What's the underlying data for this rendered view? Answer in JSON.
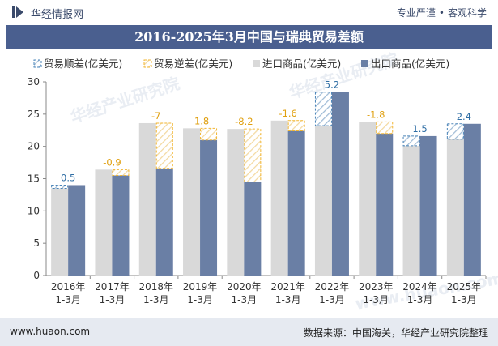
{
  "header": {
    "brand": "华经情报网",
    "tag1": "专业严谨",
    "tag2": "客观科学",
    "title": "2016-2025年3月中国与瑞典贸易差额"
  },
  "footer": {
    "site": "www.huaon.com",
    "source": "数据来源：中国海关，华经产业研究院整理"
  },
  "watermarks": [
    "华经产业研究院",
    "华经产业研究院",
    "www.huaon.com"
  ],
  "colors": {
    "import": "#d9d9d9",
    "export": "#6a7fa5",
    "surplus": "#4a84b8",
    "deficit": "#f2b632",
    "surplus_label": "#2e6da4",
    "deficit_label": "#e0a010"
  },
  "chart_data": {
    "type": "bar",
    "title": "2016-2025年3月中国与瑞典贸易差额",
    "categories": [
      "2016年\n1-3月",
      "2017年\n1-3月",
      "2018年\n1-3月",
      "2019年\n1-3月",
      "2020年\n1-3月",
      "2021年\n1-3月",
      "2022年\n1-3月",
      "2023年\n1-3月",
      "2024年\n1-3月",
      "2025年\n1-3月"
    ],
    "legend": [
      "贸易顺差(亿美元)",
      "贸易逆差(亿美元)",
      "进口商品(亿美元)",
      "出口商品(亿美元)"
    ],
    "series": [
      {
        "name": "进口商品(亿美元)",
        "values": [
          13.5,
          16.4,
          23.6,
          22.8,
          22.7,
          24.0,
          23.2,
          23.8,
          20.1,
          21.1
        ]
      },
      {
        "name": "出口商品(亿美元)",
        "values": [
          14.0,
          15.5,
          16.6,
          21.0,
          14.5,
          22.4,
          28.4,
          22.0,
          21.6,
          23.5
        ]
      }
    ],
    "balance": [
      0.5,
      -0.9,
      -7,
      -1.8,
      -8.2,
      -1.6,
      5.2,
      -1.8,
      1.5,
      2.4
    ],
    "balance_labels": [
      "0.5",
      "-0.9",
      "-7",
      "-1.8",
      "-8.2",
      "-1.6",
      "5.2",
      "-1.8",
      "1.5",
      "2.4"
    ],
    "yticks": [
      "0",
      "5",
      "10",
      "15",
      "20",
      "25",
      "30"
    ],
    "ylim": [
      0,
      30
    ],
    "grid": false
  }
}
